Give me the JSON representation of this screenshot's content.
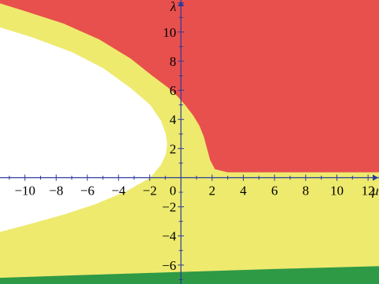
{
  "chart_data": {
    "type": "area",
    "title": "",
    "xlabel": "μ",
    "ylabel": "λ",
    "xlim": [
      -11.6,
      12.7
    ],
    "ylim": [
      -7.3,
      12.2
    ],
    "grid": false,
    "legend": "none",
    "x_ticks": [
      -10,
      -8,
      -6,
      -4,
      -2,
      2,
      4,
      6,
      8,
      10,
      12
    ],
    "y_ticks": [
      -6,
      -4,
      -2,
      2,
      4,
      6,
      8,
      10
    ],
    "x_tick_labels": [
      "−10",
      "−8",
      "−6",
      "−4",
      "−2",
      "2",
      "4",
      "6",
      "8",
      "10",
      "12"
    ],
    "y_tick_labels": [
      "−6",
      "−4",
      "−2",
      "2",
      "4",
      "6",
      "8",
      "10"
    ],
    "origin_label": "0",
    "colors": {
      "red_region": "#e8504d",
      "yellow_region": "#eeea6e",
      "green_region": "#2e9a46",
      "white_region": "#ffffff",
      "axis": "#2a3a9a"
    },
    "regions": [
      {
        "color_key": "red_region",
        "boundary": [
          [
            -11.6,
            12.2
          ],
          [
            12.7,
            12.2
          ],
          [
            12.7,
            0.4
          ],
          [
            3.0,
            0.4
          ],
          [
            2.2,
            0.6
          ],
          [
            1.9,
            1.2
          ],
          [
            1.7,
            2.0
          ],
          [
            1.5,
            2.8
          ],
          [
            1.2,
            3.6
          ],
          [
            0.8,
            4.3
          ],
          [
            0.3,
            5.0
          ],
          [
            -0.2,
            5.6
          ],
          [
            -0.8,
            6.2
          ],
          [
            -1.8,
            7.0
          ],
          [
            -3.2,
            8.2
          ],
          [
            -5.2,
            9.5
          ],
          [
            -7.5,
            10.6
          ],
          [
            -9.8,
            11.4
          ],
          [
            -11.6,
            12.0
          ]
        ]
      },
      {
        "color_key": "white_region",
        "boundary": [
          [
            -11.6,
            10.3
          ],
          [
            -9.5,
            9.6
          ],
          [
            -7.0,
            8.6
          ],
          [
            -5.0,
            7.5
          ],
          [
            -3.2,
            6.1
          ],
          [
            -2.0,
            5.0
          ],
          [
            -1.3,
            3.9
          ],
          [
            -1.0,
            3.0
          ],
          [
            -0.9,
            2.3
          ],
          [
            -1.0,
            1.6
          ],
          [
            -1.3,
            0.9
          ],
          [
            -2.0,
            0.0
          ],
          [
            -3.5,
            -0.9
          ],
          [
            -5.5,
            -1.8
          ],
          [
            -7.5,
            -2.5
          ],
          [
            -9.5,
            -3.1
          ],
          [
            -11.6,
            -3.7
          ]
        ]
      },
      {
        "color_key": "green_region",
        "boundary": [
          [
            -11.6,
            -7.3
          ],
          [
            -11.6,
            -6.9
          ],
          [
            -6.0,
            -6.7
          ],
          [
            0.0,
            -6.5
          ],
          [
            6.0,
            -6.3
          ],
          [
            12.7,
            -6.1
          ],
          [
            12.7,
            -7.3
          ]
        ]
      }
    ]
  }
}
